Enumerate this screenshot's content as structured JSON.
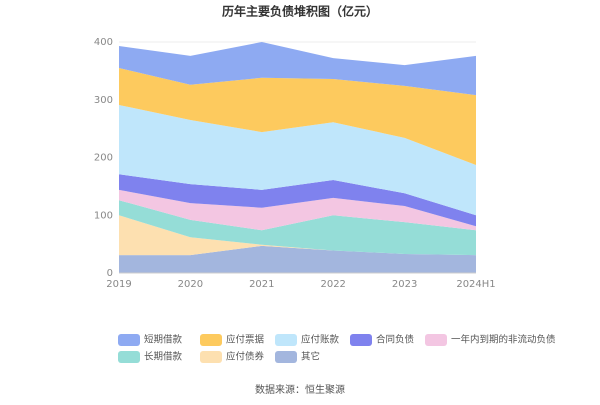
{
  "chart_data": {
    "type": "stacked-area",
    "title": "历年主要负债堆积图（亿元）",
    "categories": [
      "2019",
      "2020",
      "2021",
      "2022",
      "2023",
      "2024H1"
    ],
    "series": [
      {
        "name": "短期借款",
        "color": "#8eaaf2",
        "values": [
          38,
          50,
          62,
          36,
          36,
          68
        ]
      },
      {
        "name": "应付票据",
        "color": "#fdca5e",
        "values": [
          64,
          61,
          94,
          75,
          90,
          121
        ]
      },
      {
        "name": "应付账款",
        "color": "#bfe6fb",
        "values": [
          120,
          111,
          100,
          100,
          96,
          87
        ]
      },
      {
        "name": "合同负债",
        "color": "#7f82ee",
        "values": [
          27,
          33,
          31,
          31,
          22,
          19
        ]
      },
      {
        "name": "一年内到期的非流动负债",
        "color": "#f3c6e2",
        "values": [
          18,
          29,
          39,
          30,
          28,
          7
        ]
      },
      {
        "name": "长期借款",
        "color": "#95ddd7",
        "values": [
          26,
          30,
          25,
          61,
          55,
          43
        ]
      },
      {
        "name": "应付债券",
        "color": "#fde0b0",
        "values": [
          69,
          31,
          2,
          0,
          0,
          0
        ]
      },
      {
        "name": "其它",
        "color": "#a3b6de",
        "values": [
          31,
          31,
          47,
          39,
          33,
          31
        ]
      }
    ],
    "ylim": [
      0,
      400
    ],
    "yticks": [
      0,
      100,
      200,
      300,
      400
    ],
    "grid": true,
    "source": "数据来源：恒生聚源"
  }
}
